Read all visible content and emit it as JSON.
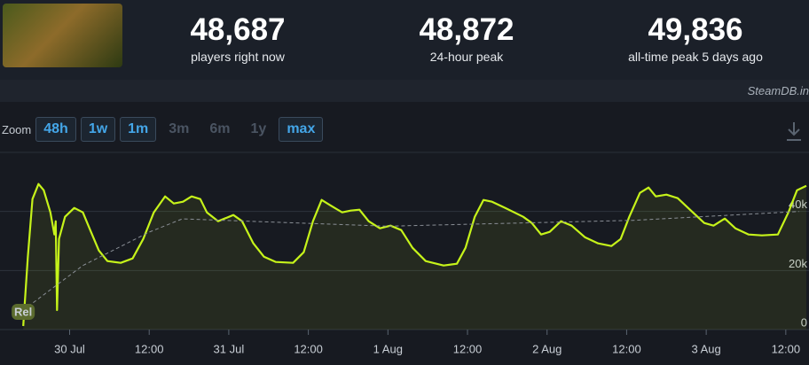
{
  "header": {
    "stats": [
      {
        "value": "48,687",
        "label": "players right now"
      },
      {
        "value": "48,872",
        "label": "24-hour peak"
      },
      {
        "value": "49,836",
        "label": "all-time peak 5 days ago"
      }
    ]
  },
  "watermark": "SteamDB.in",
  "zoom": {
    "label": "Zoom",
    "buttons": [
      {
        "text": "48h",
        "enabled": true
      },
      {
        "text": "1w",
        "enabled": true
      },
      {
        "text": "1m",
        "enabled": true
      },
      {
        "text": "3m",
        "enabled": false
      },
      {
        "text": "6m",
        "enabled": false
      },
      {
        "text": "1y",
        "enabled": false
      },
      {
        "text": "max",
        "enabled": true
      }
    ]
  },
  "chart_data": {
    "type": "line",
    "annotations": [
      {
        "text": "Rel",
        "x": -7
      }
    ],
    "xlim": [
      -10.5,
      111.5
    ],
    "xticks": [
      {
        "value": 0,
        "label": "30 Jul"
      },
      {
        "value": 12,
        "label": "12:00"
      },
      {
        "value": 24,
        "label": "31 Jul"
      },
      {
        "value": 36,
        "label": "12:00"
      },
      {
        "value": 48,
        "label": "1 Aug"
      },
      {
        "value": 60,
        "label": "12:00"
      },
      {
        "value": 72,
        "label": "2 Aug"
      },
      {
        "value": 84,
        "label": "12:00"
      },
      {
        "value": 96,
        "label": "3 Aug"
      },
      {
        "value": 108,
        "label": "12:00"
      }
    ],
    "ylim": [
      0,
      60000
    ],
    "yticks": [
      0,
      {
        "value": 20000,
        "label": "20k"
      },
      {
        "value": 40000,
        "label": "40k"
      }
    ],
    "grid": true,
    "series": [
      {
        "color": "#c6f31a",
        "area": true,
        "dashed": false,
        "x": [
          -7,
          -6.3,
          -5.6,
          -4.7,
          -3.9,
          -2.9,
          -2.3,
          -2.1,
          -1.9,
          -1.6,
          -0.7,
          0.7,
          2,
          3.1,
          4.4,
          5.7,
          7.7,
          9.5,
          11.1,
          12.7,
          14.4,
          15.7,
          17.1,
          18.4,
          19.7,
          20.7,
          22.4,
          24.7,
          26,
          27.7,
          29.3,
          31.1,
          33.7,
          35.3,
          36.7,
          38,
          39.3,
          41.1,
          42.4,
          43.7,
          45.1,
          46.8,
          48.4,
          50,
          51.7,
          53.7,
          56.4,
          58.4,
          59.7,
          61.1,
          62.4,
          63.7,
          65.7,
          68.4,
          69.7,
          71.1,
          72.4,
          74.1,
          75.7,
          77.7,
          79.7,
          81.7,
          83.1,
          84.4,
          86,
          87.3,
          88.4,
          90,
          91.7,
          93.7,
          95.7,
          97.1,
          98.8,
          100.4,
          102.4,
          104.4,
          106.8,
          108.4,
          109.7,
          111.1
        ],
        "values": [
          1200,
          24700,
          44200,
          49300,
          47200,
          39700,
          32200,
          36700,
          6600,
          30700,
          38200,
          41200,
          39700,
          33700,
          26800,
          23200,
          22600,
          24100,
          30700,
          39700,
          45100,
          42700,
          43300,
          45100,
          44200,
          39700,
          36700,
          38800,
          36700,
          29200,
          24700,
          22900,
          22600,
          26200,
          36700,
          43900,
          42100,
          39700,
          40300,
          40600,
          36700,
          34300,
          35200,
          33700,
          27700,
          23200,
          21700,
          22300,
          27700,
          38200,
          43900,
          43300,
          41200,
          38200,
          36100,
          32200,
          33100,
          36700,
          35200,
          31300,
          29200,
          28300,
          30700,
          38200,
          46300,
          48100,
          45100,
          45700,
          44500,
          40300,
          36100,
          35200,
          37600,
          34300,
          32200,
          31900,
          32200,
          39700,
          47200,
          48700
        ]
      },
      {
        "color": "#8a8f96",
        "area": false,
        "dashed": true,
        "x": [
          -7,
          2,
          12,
          17,
          48,
          85,
          110
        ],
        "values": [
          6600,
          21700,
          33000,
          37500,
          35000,
          37000,
          40000
        ]
      }
    ]
  }
}
